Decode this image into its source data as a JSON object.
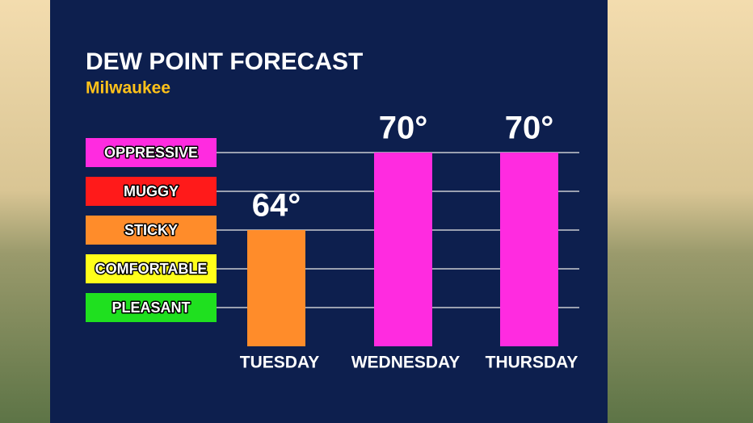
{
  "chart_data": {
    "type": "bar",
    "title": "DEW POINT FORECAST",
    "subtitle": "Milwaukee",
    "categories": [
      "TUESDAY",
      "WEDNESDAY",
      "THURSDAY"
    ],
    "values": [
      64,
      70,
      70
    ],
    "value_labels": [
      "64°",
      "70°",
      "70°"
    ],
    "colors": [
      "#ff8c2a",
      "#ff2be0",
      "#ff2be0"
    ],
    "ylim": [
      55,
      72
    ],
    "yticks": [
      {
        "value": 70,
        "label": "OPPRESSIVE"
      },
      {
        "value": 67,
        "label": "MUGGY"
      },
      {
        "value": 64,
        "label": "STICKY"
      },
      {
        "value": 61,
        "label": "COMFORTABLE"
      },
      {
        "value": 58,
        "label": "PLEASANT"
      }
    ],
    "ytick_colors": [
      "#ff2be0",
      "#ff1a1a",
      "#ff8c2a",
      "#ffff1a",
      "#1fe01f"
    ],
    "grid": true
  }
}
